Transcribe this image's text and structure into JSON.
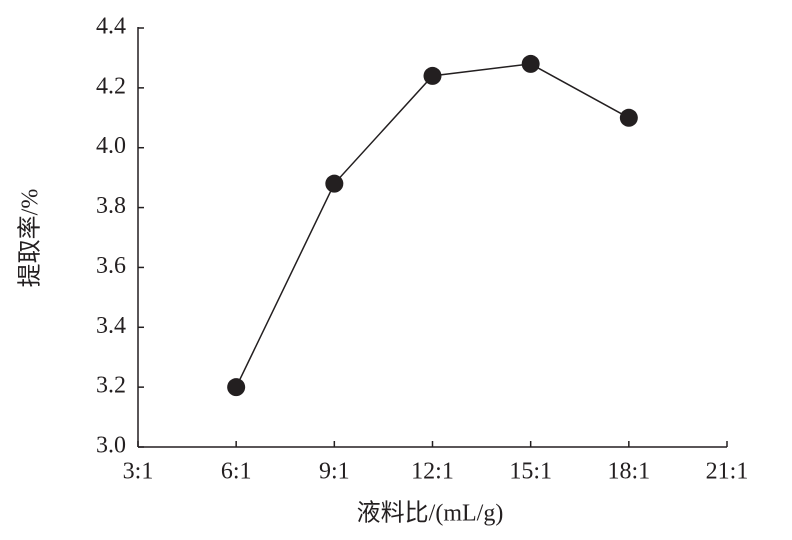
{
  "chart_data": {
    "type": "line",
    "x_label": "液料比/(mL/g)",
    "y_label": "提取率/%",
    "categories": [
      "3:1",
      "6:1",
      "9:1",
      "12:1",
      "15:1",
      "18:1",
      "21:1"
    ],
    "series": [
      {
        "color": "#231f20",
        "values": [
          null,
          3.2,
          3.88,
          4.24,
          4.28,
          4.1,
          null
        ]
      }
    ],
    "ylim": [
      3.0,
      4.4
    ],
    "yticks": [
      {
        "value": 3.0,
        "label": "3.0"
      },
      3.2,
      3.4,
      3.6,
      3.8,
      {
        "value": 4.0,
        "label": "4.0"
      },
      4.2,
      4.4
    ],
    "grid": false
  }
}
